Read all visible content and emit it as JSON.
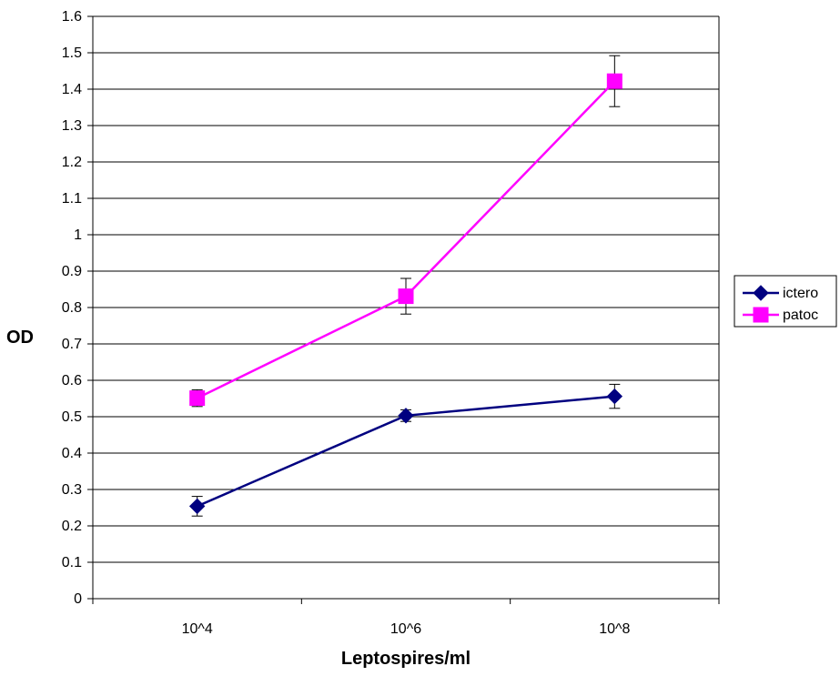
{
  "chart_data": {
    "type": "line",
    "categories": [
      "10^4",
      "10^6",
      "10^8"
    ],
    "series": [
      {
        "name": "ictero",
        "values": [
          0.254,
          0.503,
          0.556
        ],
        "error": [
          0.027,
          0.016,
          0.033
        ],
        "color": "#000080",
        "marker": "diamond"
      },
      {
        "name": "patoc",
        "values": [
          0.551,
          0.831,
          1.422
        ],
        "error": [
          0.023,
          0.049,
          0.07
        ],
        "color": "#FF00FF",
        "marker": "square"
      }
    ],
    "xlabel": "Leptospires/ml",
    "ylabel": "OD",
    "ylim": [
      0,
      1.6
    ],
    "ytick_step": 0.1,
    "yticks": [
      "0",
      "0.1",
      "0.2",
      "0.3",
      "0.4",
      "0.5",
      "0.6",
      "0.7",
      "0.8",
      "0.9",
      "1",
      "1.1",
      "1.2",
      "1.3",
      "1.4",
      "1.5",
      "1.6"
    ],
    "grid": "horizontal",
    "legend": "right"
  }
}
